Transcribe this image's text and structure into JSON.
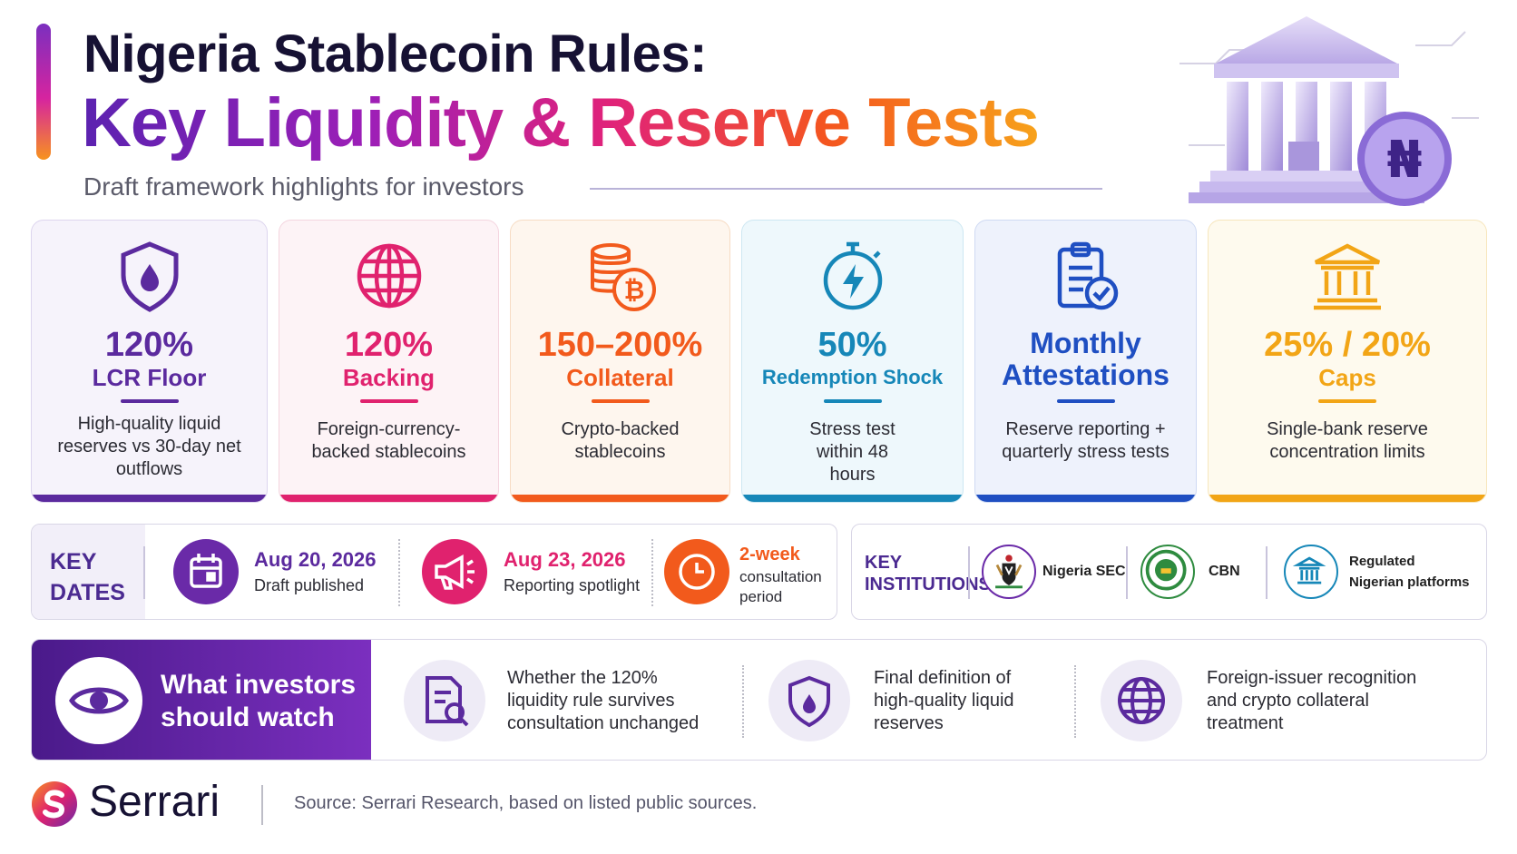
{
  "header": {
    "title_line1": "Nigeria Stablecoin Rules:",
    "title_line2": "Key Liquidity & Reserve Tests",
    "subtitle": "Draft framework highlights for investors",
    "coin_symbol": "₦"
  },
  "cards": [
    {
      "value": "120%",
      "label": "LCR Floor",
      "description": "High-quality liquid reserves vs 30-day net outflows",
      "icon": "shield-droplet-icon",
      "color": "#5b2a9e"
    },
    {
      "value": "120%",
      "label": "Backing",
      "description": "Foreign-currency-backed stablecoins",
      "icon": "globe-icon",
      "color": "#e0226e"
    },
    {
      "value": "150–200%",
      "label": "Collateral",
      "description": "Crypto-backed stablecoins",
      "icon": "coins-bitcoin-icon",
      "color": "#f25a1c"
    },
    {
      "value": "50%",
      "label": "Redemption Shock",
      "description": "Stress test within 48 hours",
      "icon": "stopwatch-bolt-icon",
      "color": "#1687b8"
    },
    {
      "value": "Monthly Attestations",
      "label": "",
      "description": "Reserve reporting + quarterly stress tests",
      "icon": "clipboard-check-icon",
      "color": "#1f4fc2"
    },
    {
      "value": "25% / 20%",
      "label": "Caps",
      "description": "Single-bank reserve concentration limits",
      "icon": "bank-icon",
      "color": "#f2a516"
    }
  ],
  "key_dates": {
    "label_line1": "KEY",
    "label_line2": "DATES",
    "items": [
      {
        "date": "Aug 20, 2026",
        "caption": "Draft published",
        "icon": "calendar-icon",
        "color": "#6a2aa8"
      },
      {
        "date": "Aug 23, 2026",
        "caption": "Reporting spotlight",
        "icon": "megaphone-icon",
        "color": "#e0226e"
      },
      {
        "date": "2-week",
        "caption_line1": "consultation",
        "caption_line2": "period",
        "icon": "clock-icon",
        "color": "#f25a1c"
      }
    ]
  },
  "key_institutions": {
    "label_line1": "KEY",
    "label_line2": "INSTITUTIONS",
    "items": [
      {
        "name": "Nigeria SEC",
        "icon": "nigeria-coat-of-arms-icon"
      },
      {
        "name": "CBN",
        "icon": "cbn-seal-icon"
      },
      {
        "name_line1": "Regulated",
        "name_line2": "Nigerian platforms",
        "icon": "bank-icon"
      }
    ]
  },
  "watch": {
    "title_line1": "What investors",
    "title_line2": "should watch",
    "items": [
      {
        "text": "Whether the 120% liquidity rule survives consultation unchanged",
        "icon": "document-search-icon"
      },
      {
        "text": "Final definition of high-quality liquid reserves",
        "icon": "shield-droplet-icon"
      },
      {
        "text": "Foreign-issuer recognition and crypto collateral treatment",
        "icon": "globe-icon"
      }
    ]
  },
  "footer": {
    "brand": "Serrari",
    "source": "Source: Serrari Research, based on listed public sources."
  }
}
